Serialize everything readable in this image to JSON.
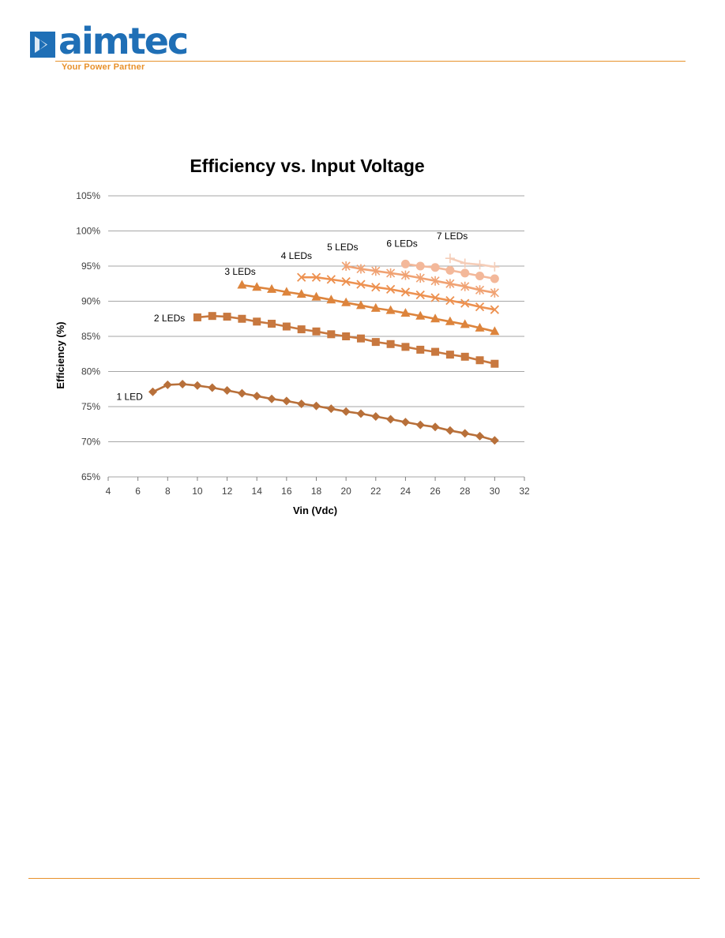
{
  "brand": {
    "name": "aimtec",
    "tagline": "Your Power Partner",
    "logo_color": "#1f6fb6",
    "accent_color": "#e8912b"
  },
  "chart_data": {
    "type": "line",
    "title": "Efficiency vs. Input Voltage",
    "xlabel": "Vin (Vdc)",
    "ylabel": "Efficiency (%)",
    "xlim": [
      4,
      32
    ],
    "ylim": [
      65,
      105
    ],
    "xticks": [
      "4",
      "6",
      "8",
      "10",
      "12",
      "14",
      "16",
      "18",
      "20",
      "22",
      "24",
      "26",
      "28",
      "30",
      "32"
    ],
    "yticks": [
      "65%",
      "70%",
      "75%",
      "80%",
      "85%",
      "90%",
      "95%",
      "100%",
      "105%"
    ],
    "grid": true,
    "legend": "none",
    "series": [
      {
        "name": "1 LED",
        "color": "#b8703a",
        "marker": "diamond",
        "x": [
          7,
          8,
          9,
          10,
          11,
          12,
          13,
          14,
          15,
          16,
          17,
          18,
          19,
          20,
          21,
          22,
          23,
          24,
          25,
          26,
          27,
          28,
          29,
          30
        ],
        "values": [
          77.1,
          78.1,
          78.2,
          78.0,
          77.7,
          77.3,
          76.9,
          76.5,
          76.1,
          75.8,
          75.4,
          75.1,
          74.7,
          74.3,
          74.0,
          73.6,
          73.2,
          72.8,
          72.4,
          72.1,
          71.6,
          71.2,
          70.8,
          70.2
        ]
      },
      {
        "name": "2 LEDs",
        "color": "#c8783f",
        "marker": "square",
        "x": [
          10,
          11,
          12,
          13,
          14,
          15,
          16,
          17,
          18,
          19,
          20,
          21,
          22,
          23,
          24,
          25,
          26,
          27,
          28,
          29,
          30
        ],
        "values": [
          87.7,
          87.9,
          87.8,
          87.5,
          87.1,
          86.8,
          86.4,
          86.0,
          85.7,
          85.3,
          85.0,
          84.7,
          84.2,
          83.9,
          83.5,
          83.1,
          82.8,
          82.4,
          82.1,
          81.6,
          81.1
        ]
      },
      {
        "name": "3 LEDs",
        "color": "#dd843c",
        "marker": "triangle",
        "x": [
          13,
          14,
          15,
          16,
          17,
          18,
          19,
          20,
          21,
          22,
          23,
          24,
          25,
          26,
          27,
          28,
          29,
          30
        ],
        "values": [
          92.3,
          92.0,
          91.7,
          91.3,
          91.0,
          90.6,
          90.2,
          89.8,
          89.4,
          89.0,
          88.7,
          88.3,
          87.9,
          87.5,
          87.1,
          86.7,
          86.2,
          85.7
        ]
      },
      {
        "name": "4 LEDs",
        "color": "#ed9150",
        "marker": "x",
        "x": [
          17,
          18,
          19,
          20,
          21,
          22,
          23,
          24,
          25,
          26,
          27,
          28,
          29,
          30
        ],
        "values": [
          93.4,
          93.4,
          93.1,
          92.8,
          92.4,
          92.0,
          91.7,
          91.3,
          90.9,
          90.5,
          90.1,
          89.7,
          89.2,
          88.8
        ]
      },
      {
        "name": "5 LEDs",
        "color": "#f0a273",
        "marker": "asterisk",
        "x": [
          20,
          21,
          22,
          23,
          24,
          25,
          26,
          27,
          28,
          29,
          30
        ],
        "values": [
          95.0,
          94.6,
          94.3,
          94.0,
          93.7,
          93.3,
          92.9,
          92.5,
          92.1,
          91.6,
          91.2
        ]
      },
      {
        "name": "6 LEDs",
        "color": "#f3b89a",
        "marker": "circle",
        "x": [
          24,
          25,
          26,
          27,
          28,
          29,
          30
        ],
        "values": [
          95.3,
          95.0,
          94.8,
          94.4,
          94.0,
          93.6,
          93.2
        ]
      },
      {
        "name": "7 LEDs",
        "color": "#f5cdb8",
        "marker": "plus",
        "x": [
          27,
          28,
          29,
          30
        ],
        "values": [
          96.1,
          95.4,
          95.2,
          94.9
        ]
      }
    ]
  }
}
